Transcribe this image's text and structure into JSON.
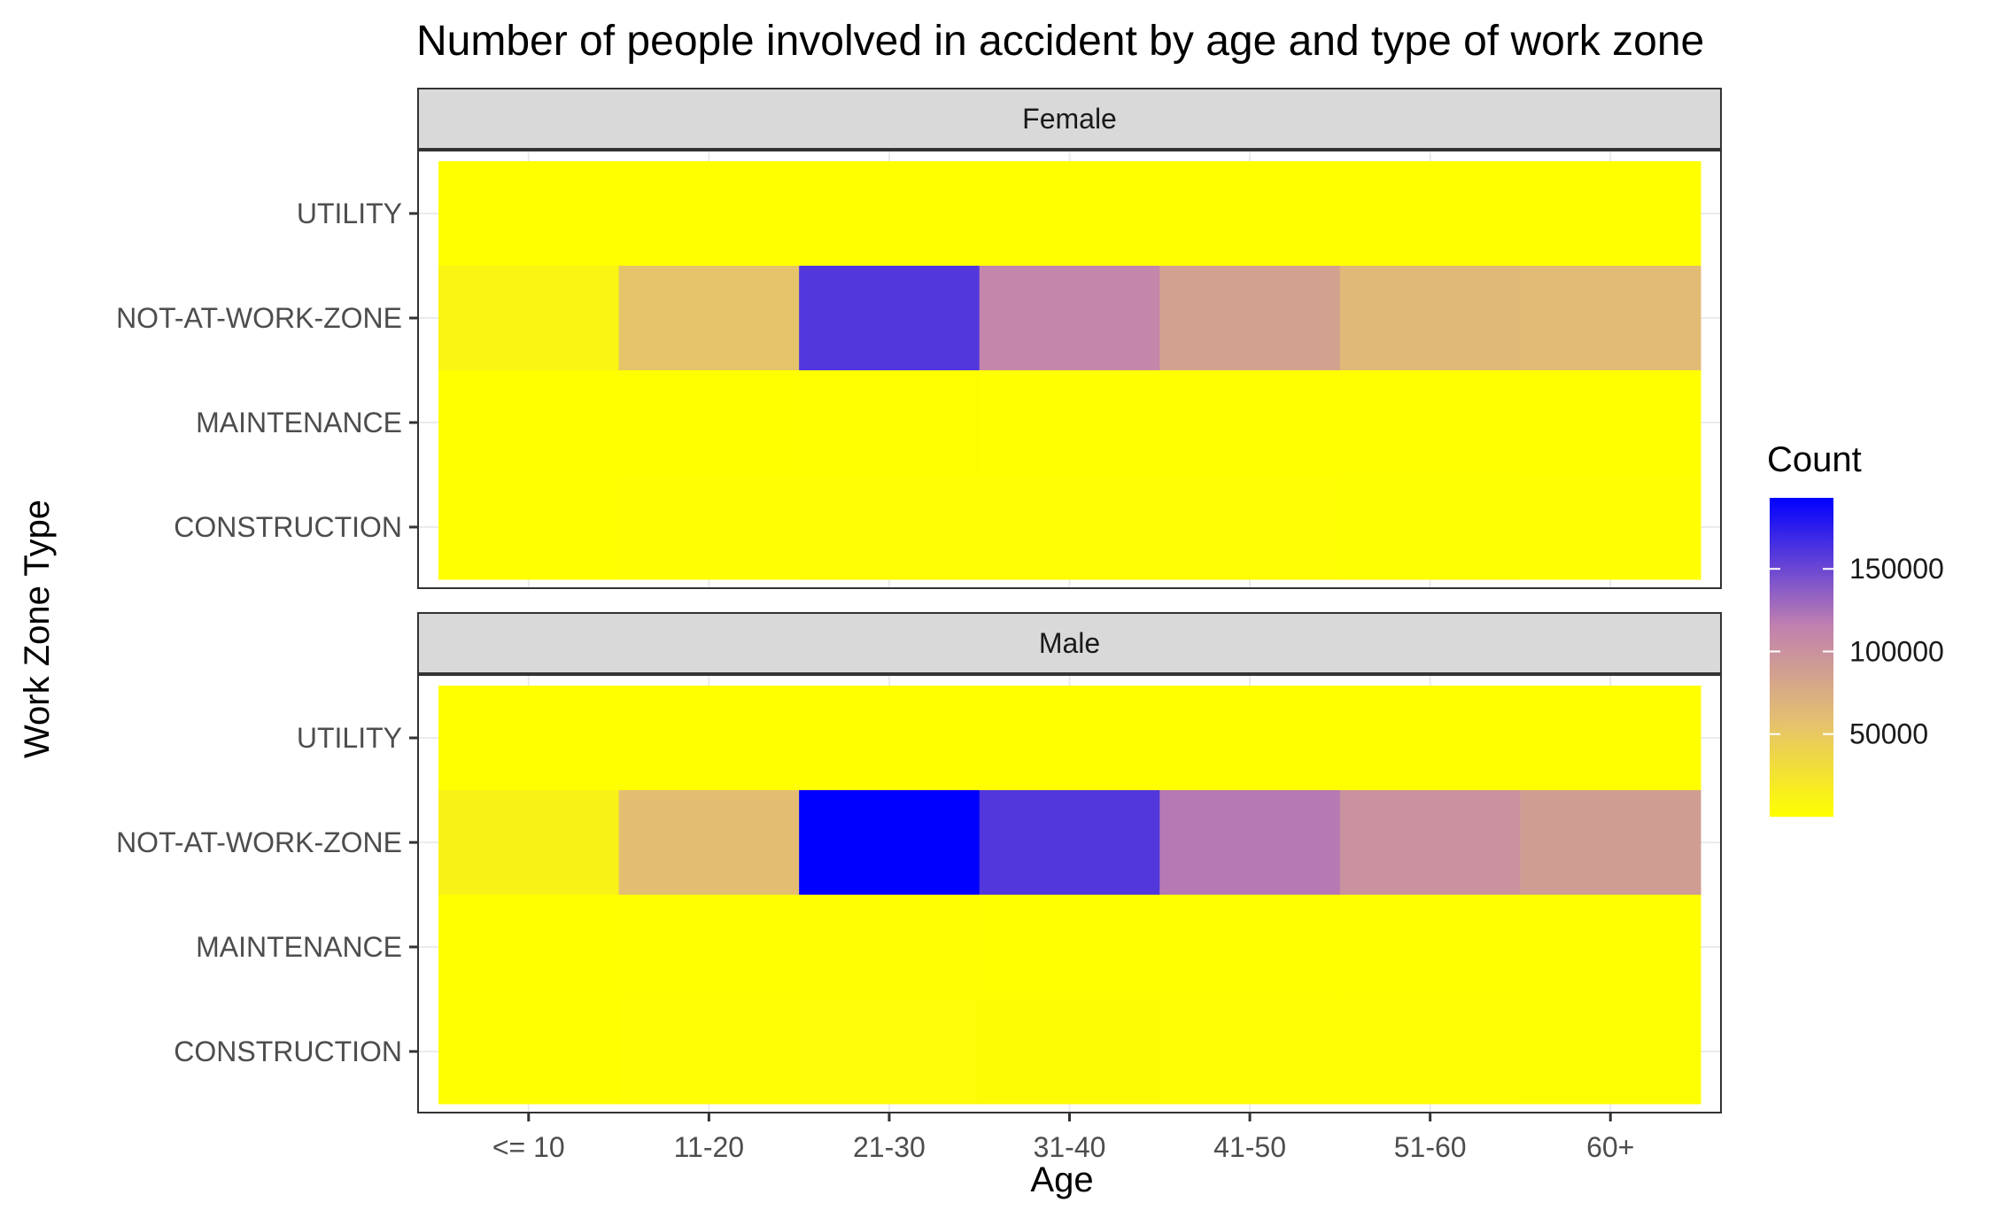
{
  "chart_data": {
    "type": "heatmap",
    "title": "Number of people involved in accident by age and type of work zone",
    "xlabel": "Age",
    "ylabel": "Work Zone Type",
    "x_categories": [
      "<= 10",
      "11-20",
      "21-30",
      "31-40",
      "41-50",
      "51-60",
      "60+"
    ],
    "y_categories": [
      "UTILITY",
      "NOT-AT-WORK-ZONE",
      "MAINTENANCE",
      "CONSTRUCTION"
    ],
    "facets": [
      {
        "name": "Female",
        "values": {
          "UTILITY": [
            50,
            80,
            150,
            120,
            110,
            90,
            80
          ],
          "NOT-AT-WORK-ZONE": [
            10000,
            55000,
            160000,
            110000,
            85000,
            65000,
            62000
          ],
          "MAINTENANCE": [
            80,
            200,
            500,
            400,
            350,
            300,
            250
          ],
          "CONSTRUCTION": [
            300,
            900,
            2000,
            1600,
            1400,
            1100,
            900
          ]
        }
      },
      {
        "name": "Male",
        "values": {
          "UTILITY": [
            60,
            120,
            250,
            200,
            180,
            150,
            120
          ],
          "NOT-AT-WORK-ZONE": [
            12000,
            60000,
            193000,
            160000,
            120000,
            100000,
            90000
          ],
          "MAINTENANCE": [
            100,
            300,
            800,
            700,
            600,
            500,
            400
          ],
          "CONSTRUCTION": [
            400,
            1500,
            3000,
            2600,
            2200,
            1700,
            1300
          ]
        }
      }
    ],
    "legend": {
      "title": "Count",
      "ticks": [
        50000,
        100000,
        150000
      ],
      "tick_labels": [
        "50000",
        "100000",
        "150000"
      ],
      "range": [
        0,
        193000
      ],
      "low_color": "#ffff00",
      "high_color": "#0000ff",
      "placement": "right"
    },
    "grid": true
  }
}
